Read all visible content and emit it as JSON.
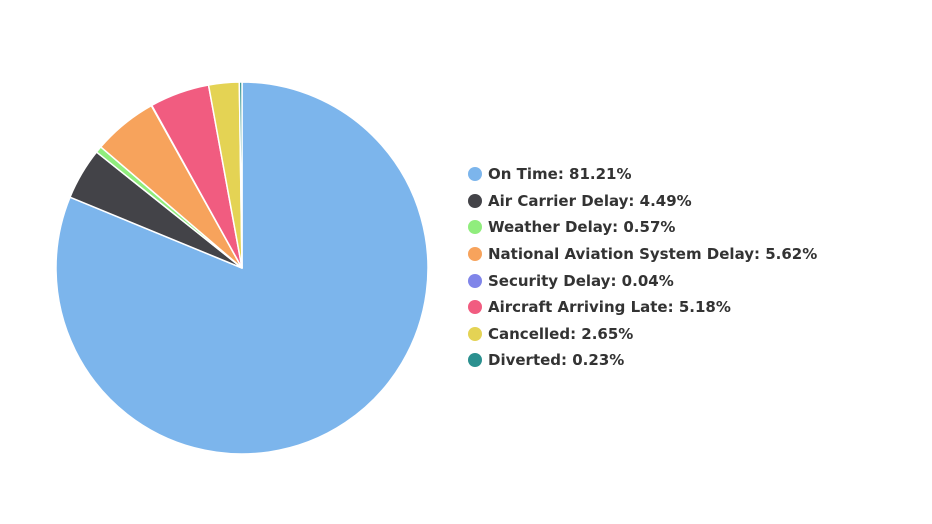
{
  "chart_data": {
    "type": "pie",
    "title": "",
    "legend_position": "right",
    "slices": [
      {
        "name": "On Time",
        "value": 81.21,
        "label": "On Time: 81.21%",
        "color": "#7cb5ec"
      },
      {
        "name": "Air Carrier Delay",
        "value": 4.49,
        "label": "Air Carrier Delay: 4.49%",
        "color": "#434348"
      },
      {
        "name": "Weather Delay",
        "value": 0.57,
        "label": "Weather Delay: 0.57%",
        "color": "#90ed7d"
      },
      {
        "name": "National Aviation System Delay",
        "value": 5.62,
        "label": "National Aviation System Delay: 5.62%",
        "color": "#f7a35c"
      },
      {
        "name": "Security Delay",
        "value": 0.04,
        "label": "Security Delay: 0.04%",
        "color": "#8085e9"
      },
      {
        "name": "Aircraft Arriving Late",
        "value": 5.18,
        "label": "Aircraft Arriving Late: 5.18%",
        "color": "#f15c80"
      },
      {
        "name": "Cancelled",
        "value": 2.65,
        "label": "Cancelled: 2.65%",
        "color": "#e4d354"
      },
      {
        "name": "Diverted",
        "value": 0.23,
        "label": "Diverted: 0.23%",
        "color": "#2b908f"
      }
    ]
  }
}
